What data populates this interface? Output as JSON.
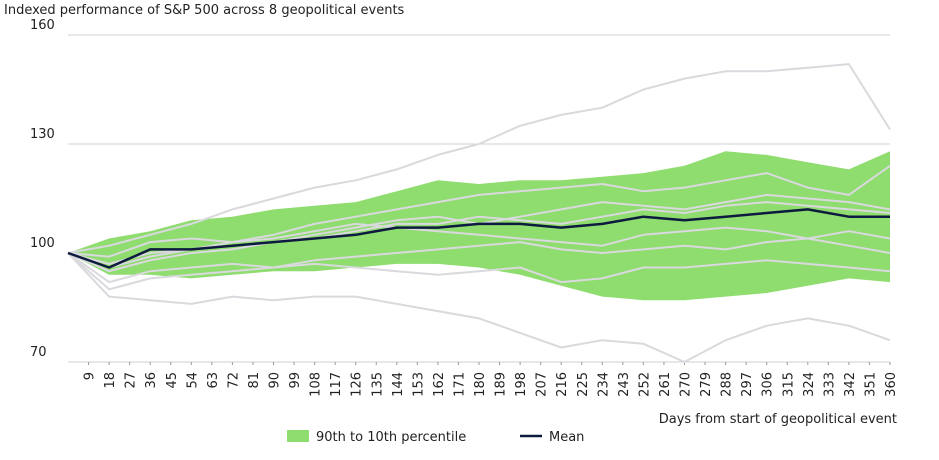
{
  "chart_data": {
    "type": "line",
    "title": "Indexed performance of S&P 500 across 8 geopolitical events",
    "x_label": "Days from start of geopolitical event",
    "x": [
      0,
      18,
      36,
      54,
      72,
      90,
      108,
      126,
      144,
      162,
      180,
      198,
      216,
      234,
      252,
      270,
      288,
      306,
      324,
      342,
      360
    ],
    "xlim": [
      0,
      360
    ],
    "xticks": [
      9,
      18,
      27,
      36,
      45,
      54,
      63,
      72,
      81,
      90,
      99,
      108,
      117,
      126,
      135,
      144,
      153,
      162,
      171,
      180,
      189,
      198,
      207,
      216,
      225,
      234,
      243,
      252,
      261,
      270,
      279,
      288,
      297,
      306,
      315,
      324,
      333,
      342,
      351,
      360
    ],
    "ylim": [
      70,
      160
    ],
    "yticks": [
      70,
      100,
      130,
      160
    ],
    "grid": true,
    "band": {
      "name": "90th to 10th percentile",
      "color": "#8fdc6f",
      "upper": [
        100,
        104,
        106,
        109,
        110,
        112,
        113,
        114,
        117,
        120,
        119,
        120,
        120,
        121,
        122,
        124,
        128,
        127,
        125,
        123,
        128
      ],
      "lower": [
        100,
        94,
        94,
        93,
        94,
        95,
        95,
        96,
        97,
        97,
        96,
        94,
        91,
        88,
        87,
        87,
        88,
        89,
        91,
        93,
        92
      ]
    },
    "series": [
      {
        "name": "Mean",
        "color": "#0d1b3e",
        "values": [
          100,
          96,
          101,
          101,
          102,
          103,
          104,
          105,
          107,
          107,
          108,
          108,
          107,
          108,
          110,
          109,
          110,
          111,
          112,
          110,
          110
        ]
      }
    ],
    "event_lines": [
      {
        "color": "#d9d9de",
        "values": [
          100,
          102,
          105,
          108,
          112,
          115,
          118,
          120,
          123,
          127,
          130,
          135,
          138,
          140,
          145,
          148,
          150,
          150,
          151,
          152,
          134
        ]
      },
      {
        "color": "#d9d9de",
        "values": [
          100,
          88,
          87,
          86,
          88,
          87,
          88,
          88,
          86,
          84,
          82,
          78,
          74,
          76,
          75,
          70,
          76,
          80,
          82,
          80,
          76
        ]
      },
      {
        "color": "#d9d9de",
        "values": [
          100,
          97,
          100,
          101,
          103,
          105,
          108,
          110,
          112,
          114,
          116,
          117,
          118,
          119,
          117,
          118,
          120,
          122,
          118,
          116,
          124
        ]
      },
      {
        "color": "#d9d9de",
        "values": [
          100,
          95,
          98,
          100,
          101,
          103,
          105,
          107,
          109,
          110,
          108,
          110,
          112,
          114,
          113,
          112,
          114,
          116,
          115,
          114,
          112
        ]
      },
      {
        "color": "#d9d9de",
        "values": [
          100,
          99,
          103,
          104,
          103,
          104,
          106,
          108,
          107,
          106,
          105,
          104,
          103,
          102,
          105,
          106,
          107,
          106,
          104,
          106,
          104
        ]
      },
      {
        "color": "#d9d9de",
        "values": [
          100,
          92,
          95,
          96,
          97,
          96,
          98,
          99,
          100,
          101,
          102,
          103,
          101,
          100,
          101,
          102,
          101,
          103,
          104,
          102,
          100
        ]
      },
      {
        "color": "#d9d9de",
        "values": [
          100,
          90,
          93,
          94,
          95,
          96,
          97,
          96,
          95,
          94,
          95,
          96,
          92,
          93,
          96,
          96,
          97,
          98,
          97,
          96,
          95
        ]
      },
      {
        "color": "#d9d9de",
        "values": [
          100,
          96,
          99,
          101,
          102,
          103,
          104,
          106,
          108,
          108,
          110,
          109,
          108,
          110,
          112,
          111,
          113,
          114,
          113,
          112,
          111
        ]
      }
    ]
  }
}
